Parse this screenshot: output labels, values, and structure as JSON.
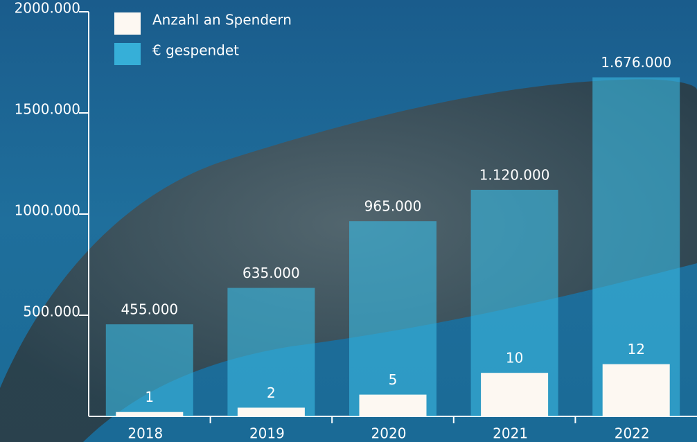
{
  "chart_data": {
    "type": "bar",
    "categories": [
      "2018",
      "2019",
      "2020",
      "2021",
      "2022"
    ],
    "series": [
      {
        "name": "€ gespendet",
        "color": "#3ab8e0",
        "values": [
          455000,
          635000,
          965000,
          1120000,
          1676000
        ],
        "value_labels": [
          "455.000",
          "635.000",
          "965.000",
          "1.120.000",
          "1.676.000"
        ]
      },
      {
        "name": "Anzahl an Spendern",
        "color": "#fdf8f2",
        "axis": "y2",
        "values": [
          1,
          2,
          5,
          10,
          12
        ]
      }
    ],
    "ylim": [
      0,
      2000000
    ],
    "yticks": [
      {
        "value": 500000,
        "label": "500.000"
      },
      {
        "value": 1000000,
        "label": "1000.000"
      },
      {
        "value": 1500000,
        "label": "1500.000"
      },
      {
        "value": 2000000,
        "label": "2000.000"
      }
    ],
    "y2lim": [
      0,
      93
    ],
    "legend": "top-left"
  }
}
